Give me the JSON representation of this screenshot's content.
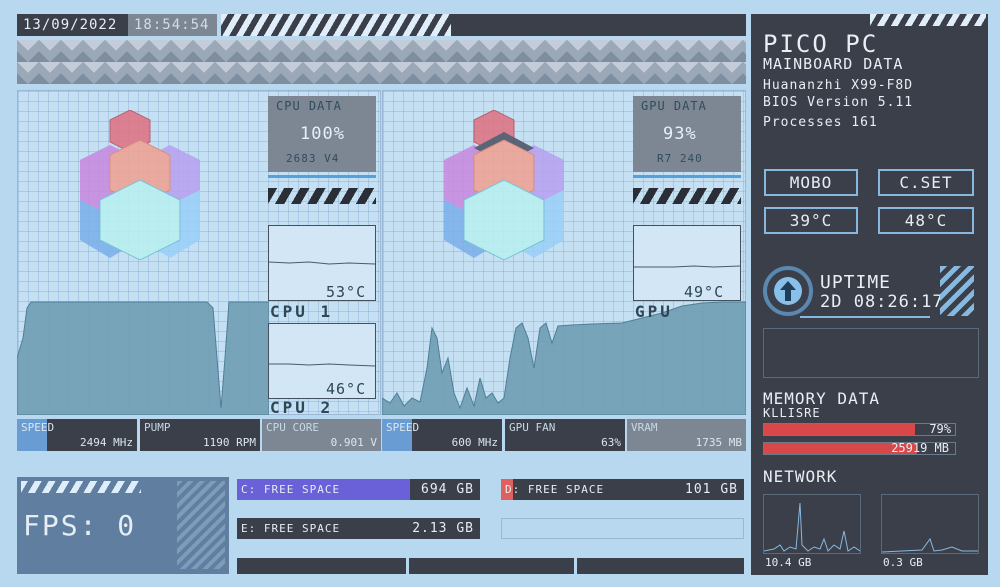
{
  "header": {
    "date": "13/09/2022",
    "time": "18:54:54"
  },
  "cpu_panel": {
    "title": "CPU DATA",
    "load": "100%",
    "model": "2683 V4",
    "temp1": "53°C",
    "label1": "CPU 1",
    "temp2": "46°C",
    "label2": "CPU 2"
  },
  "gpu_panel": {
    "title": "GPU DATA",
    "load": "93%",
    "model": "R7 240",
    "temp": "49°C",
    "label": "GPU"
  },
  "stats": [
    {
      "label": "SPEED",
      "value": "2494 MHz"
    },
    {
      "label": "PUMP",
      "value": "1190 RPM"
    },
    {
      "label": "CPU CORE",
      "value": "0.901 V"
    },
    {
      "label": "SPEED",
      "value": "600 MHz"
    },
    {
      "label": "GPU FAN",
      "value": "63%"
    },
    {
      "label": "VRAM",
      "value": "1735 MB"
    }
  ],
  "fps": {
    "label": "FPS: 0"
  },
  "drives": [
    {
      "label": "C: FREE SPACE",
      "value": "694 GB",
      "fill": 0.71,
      "color": "#6a60d8"
    },
    {
      "label": "D: FREE SPACE",
      "value": "101 GB",
      "fill": 0.05,
      "color": "#e06060"
    },
    {
      "label": "E: FREE SPACE",
      "value": "2.13 GB",
      "fill": 0.0,
      "color": "#6a60d8"
    }
  ],
  "right": {
    "title": "PICO PC",
    "subtitle": "MAINBOARD DATA",
    "board": "Huananzhi X99-F8D",
    "bios": "BIOS Version 5.11",
    "processes": "Processes 161",
    "mobo_label": "MOBO",
    "cset_label": "C.SET",
    "mobo_temp": "39°C",
    "cset_temp": "48°C",
    "uptime_label": "UPTIME",
    "uptime_value": "2D 08:26:17",
    "memory_title": "MEMORY DATA",
    "memory_name": "KLLISRE",
    "memory_pct": "79%",
    "memory_pct_value": 79,
    "memory_mb": "25919 MB",
    "memory_mb_fill": 0.86,
    "network_title": "NETWORK",
    "net_down": "10.4 GB",
    "net_up": "0.3 GB"
  },
  "colors": {
    "accent": "#88b8de",
    "dark": "#3a3f4a",
    "red": "#d84848"
  }
}
